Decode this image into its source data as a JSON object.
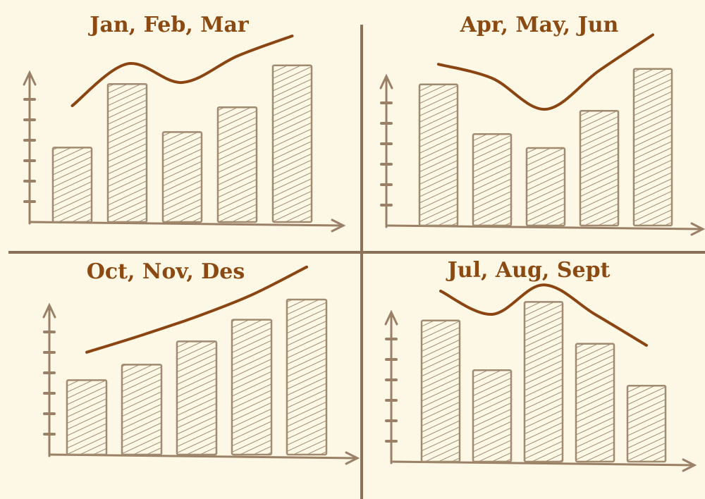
{
  "chart_data": [
    {
      "type": "bar",
      "title": "Jan, Feb, Mar",
      "ylim": [
        0,
        125
      ],
      "series": [
        {
          "type": "bar",
          "color": "#a08a70",
          "values": [
            48,
            89,
            58,
            74,
            101
          ]
        },
        {
          "type": "line",
          "color": "#8b4513",
          "values": [
            75,
            102,
            90,
            107,
            120
          ]
        }
      ]
    },
    {
      "type": "bar",
      "title": "Apr, May, Jun",
      "ylim": [
        0,
        125
      ],
      "series": [
        {
          "type": "bar",
          "color": "#a08a70",
          "values": [
            91,
            59,
            50,
            74,
            101
          ]
        },
        {
          "type": "line",
          "color": "#8b4513",
          "values": [
            104,
            95,
            75,
            100,
            123
          ]
        }
      ]
    },
    {
      "type": "bar",
      "title": "Oct, Nov, Des",
      "ylim": [
        0,
        125
      ],
      "series": [
        {
          "type": "bar",
          "color": "#a08a70",
          "values": [
            48,
            58,
            73,
            87,
            100
          ]
        },
        {
          "type": "line",
          "color": "#8b4513",
          "values": [
            66,
            77,
            89,
            103,
            121
          ]
        }
      ]
    },
    {
      "type": "bar",
      "title": "Jul, Aug, Sept",
      "ylim": [
        0,
        125
      ],
      "series": [
        {
          "type": "bar",
          "color": "#a08a70",
          "values": [
            91,
            59,
            103,
            76,
            49
          ]
        },
        {
          "type": "line",
          "color": "#8b4513",
          "values": [
            110,
            95,
            114,
            95,
            75
          ]
        }
      ]
    }
  ]
}
